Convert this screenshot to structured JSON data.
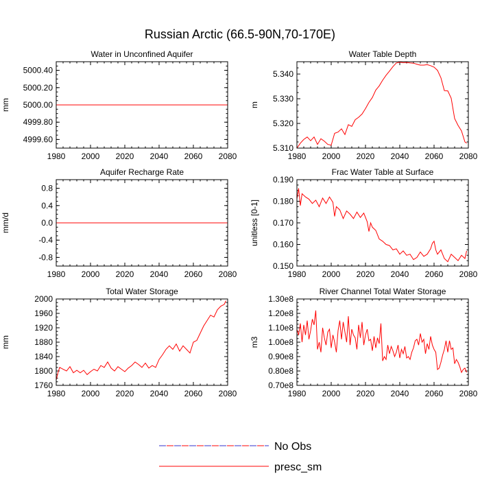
{
  "figure": {
    "title": "Russian Arctic (66.5-90N,70-170E)"
  },
  "legend": {
    "entries": [
      {
        "label": "No Obs",
        "style": "dashed",
        "color": "#3333cc",
        "color2": "#ff0000"
      },
      {
        "label": "presc_sm",
        "style": "solid",
        "color": "#ff0000"
      }
    ]
  },
  "chart_data": [
    {
      "type": "line",
      "title": "Water in Unconfined Aquifer",
      "xlabel": "",
      "ylabel": "mm",
      "xlim": [
        1980,
        2080
      ],
      "ylim": [
        4999.5,
        5000.5
      ],
      "xticks": [
        1980,
        2000,
        2020,
        2040,
        2060,
        2080
      ],
      "xtick_labels": [
        "1980",
        "2000",
        "2020",
        "2040",
        "2060",
        "2080"
      ],
      "yticks": [
        4999.6,
        4999.8,
        5000.0,
        5000.2,
        5000.4
      ],
      "ytick_labels": [
        "4999.60",
        "4999.80",
        "5000.00",
        "5000.20",
        "5000.40"
      ],
      "series": [
        {
          "name": "presc_sm",
          "x": [
            1980,
            2080
          ],
          "values": [
            5000.0,
            5000.0
          ]
        }
      ]
    },
    {
      "type": "line",
      "title": "Water Table Depth",
      "xlabel": "",
      "ylabel": "m",
      "xlim": [
        1980,
        2080
      ],
      "ylim": [
        5.31,
        5.345
      ],
      "xticks": [
        1980,
        2000,
        2020,
        2040,
        2060,
        2080
      ],
      "xtick_labels": [
        "1980",
        "2000",
        "2020",
        "2040",
        "2060",
        "2080"
      ],
      "yticks": [
        5.31,
        5.32,
        5.33,
        5.34
      ],
      "ytick_labels": [
        "5.310",
        "5.320",
        "5.330",
        "5.340"
      ],
      "series": [
        {
          "name": "presc_sm",
          "x": [
            1980,
            1982,
            1984,
            1986,
            1988,
            1990,
            1992,
            1994,
            1996,
            1998,
            2000,
            2002,
            2004,
            2006,
            2008,
            2010,
            2012,
            2014,
            2016,
            2018,
            2020,
            2022,
            2024,
            2026,
            2028,
            2030,
            2032,
            2034,
            2036,
            2038,
            2040,
            2042,
            2044,
            2046,
            2048,
            2050,
            2052,
            2054,
            2056,
            2058,
            2060,
            2062,
            2064,
            2066,
            2068,
            2070,
            2072,
            2074,
            2076,
            2078,
            2079
          ],
          "values": [
            5.31,
            5.312,
            5.3135,
            5.3145,
            5.313,
            5.3145,
            5.3115,
            5.3138,
            5.3128,
            5.3115,
            5.3112,
            5.316,
            5.3165,
            5.3178,
            5.3155,
            5.3195,
            5.3188,
            5.3215,
            5.3225,
            5.3238,
            5.326,
            5.3285,
            5.3305,
            5.3335,
            5.3352,
            5.3375,
            5.3395,
            5.3412,
            5.343,
            5.3445,
            5.3448,
            5.3446,
            5.3447,
            5.3445,
            5.3444,
            5.344,
            5.3436,
            5.3436,
            5.3438,
            5.3434,
            5.3428,
            5.3415,
            5.3385,
            5.3333,
            5.3332,
            5.3302,
            5.322,
            5.3192,
            5.317,
            5.3125,
            5.312
          ]
        }
      ]
    },
    {
      "type": "line",
      "title": "Aquifer Recharge Rate",
      "xlabel": "",
      "ylabel": "mm/d",
      "xlim": [
        1980,
        2080
      ],
      "ylim": [
        -1.0,
        1.0
      ],
      "xticks": [
        1980,
        2000,
        2020,
        2040,
        2060,
        2080
      ],
      "xtick_labels": [
        "1980",
        "2000",
        "2020",
        "2040",
        "2060",
        "2080"
      ],
      "yticks": [
        -0.8,
        -0.4,
        0.0,
        0.4,
        0.8
      ],
      "ytick_labels": [
        "-0.8",
        "-0.4",
        "0.0",
        "0.4",
        "0.8"
      ],
      "series": [
        {
          "name": "presc_sm",
          "x": [
            1980,
            2080
          ],
          "values": [
            0.0,
            0.0
          ]
        }
      ]
    },
    {
      "type": "line",
      "title": "Frac Water Table at Surface",
      "xlabel": "",
      "ylabel": "unitless [0-1]",
      "xlim": [
        1980,
        2080
      ],
      "ylim": [
        0.15,
        0.19
      ],
      "xticks": [
        1980,
        2000,
        2020,
        2040,
        2060,
        2080
      ],
      "xtick_labels": [
        "1980",
        "2000",
        "2020",
        "2040",
        "2060",
        "2080"
      ],
      "yticks": [
        0.15,
        0.16,
        0.17,
        0.18,
        0.19
      ],
      "ytick_labels": [
        "0.150",
        "0.160",
        "0.170",
        "0.180",
        "0.190"
      ],
      "series": [
        {
          "name": "presc_sm",
          "x": [
            1980,
            1981,
            1982,
            1983,
            1985,
            1987,
            1989,
            1991,
            1993,
            1995,
            1997,
            1999,
            2001,
            2002,
            2003,
            2005,
            2007,
            2009,
            2011,
            2013,
            2015,
            2017,
            2019,
            2021,
            2022,
            2023,
            2024,
            2026,
            2028,
            2030,
            2032,
            2034,
            2036,
            2038,
            2040,
            2042,
            2044,
            2046,
            2048,
            2050,
            2052,
            2054,
            2056,
            2058,
            2059,
            2060,
            2061,
            2062,
            2064,
            2066,
            2068,
            2070,
            2072,
            2074,
            2076,
            2078,
            2079
          ],
          "values": [
            0.181,
            0.186,
            0.178,
            0.1835,
            0.182,
            0.181,
            0.179,
            0.1805,
            0.1775,
            0.1815,
            0.179,
            0.182,
            0.1795,
            0.173,
            0.1775,
            0.176,
            0.172,
            0.1755,
            0.174,
            0.172,
            0.175,
            0.1725,
            0.1745,
            0.1705,
            0.166,
            0.17,
            0.168,
            0.1665,
            0.1625,
            0.1615,
            0.16,
            0.1595,
            0.1575,
            0.158,
            0.1555,
            0.157,
            0.155,
            0.1555,
            0.153,
            0.154,
            0.1565,
            0.1545,
            0.1555,
            0.158,
            0.1605,
            0.1615,
            0.1575,
            0.1555,
            0.1575,
            0.1535,
            0.152,
            0.1555,
            0.154,
            0.1525,
            0.155,
            0.1535,
            0.157
          ]
        }
      ]
    },
    {
      "type": "line",
      "title": "Total Water Storage",
      "xlabel": "",
      "ylabel": "mm",
      "xlim": [
        1980,
        2080
      ],
      "ylim": [
        1760,
        2000
      ],
      "xticks": [
        1980,
        2000,
        2020,
        2040,
        2060,
        2080
      ],
      "xtick_labels": [
        "1980",
        "2000",
        "2020",
        "2040",
        "2060",
        "2080"
      ],
      "yticks": [
        1760,
        1800,
        1840,
        1880,
        1920,
        1960,
        2000
      ],
      "ytick_labels": [
        "1760",
        "1800",
        "1840",
        "1880",
        "1920",
        "1960",
        "2000"
      ],
      "series": [
        {
          "name": "presc_sm",
          "x": [
            1980,
            1981,
            1982,
            1984,
            1986,
            1988,
            1990,
            1992,
            1994,
            1996,
            1998,
            2000,
            2002,
            2004,
            2006,
            2008,
            2010,
            2012,
            2014,
            2016,
            2018,
            2020,
            2022,
            2024,
            2026,
            2028,
            2030,
            2032,
            2034,
            2036,
            2038,
            2040,
            2042,
            2044,
            2046,
            2048,
            2050,
            2052,
            2054,
            2056,
            2058,
            2060,
            2062,
            2064,
            2066,
            2068,
            2070,
            2072,
            2074,
            2076,
            2078,
            2079
          ],
          "values": [
            1775,
            1795,
            1810,
            1805,
            1800,
            1812,
            1795,
            1802,
            1795,
            1802,
            1790,
            1798,
            1805,
            1800,
            1815,
            1810,
            1825,
            1808,
            1800,
            1812,
            1805,
            1798,
            1808,
            1815,
            1825,
            1818,
            1810,
            1822,
            1808,
            1815,
            1810,
            1832,
            1845,
            1860,
            1870,
            1860,
            1875,
            1855,
            1870,
            1860,
            1850,
            1880,
            1885,
            1905,
            1925,
            1940,
            1955,
            1950,
            1970,
            1980,
            1985,
            1995
          ]
        }
      ]
    },
    {
      "type": "line",
      "title": "River Channel Total Water Storage",
      "xlabel": "",
      "ylabel": "m3",
      "xlim": [
        1980,
        2080
      ],
      "ylim": [
        70000000.0,
        130000000.0
      ],
      "xticks": [
        1980,
        2000,
        2020,
        2040,
        2060,
        2080
      ],
      "xtick_labels": [
        "1980",
        "2000",
        "2020",
        "2040",
        "2060",
        "2080"
      ],
      "yticks": [
        70000000.0,
        80000000.0,
        90000000.0,
        100000000.0,
        110000000.0,
        120000000.0,
        130000000.0
      ],
      "ytick_labels": [
        "0.70e8",
        "0.80e8",
        "0.90e8",
        "1.00e8",
        "1.10e8",
        "1.20e8",
        "1.30e8"
      ],
      "series": [
        {
          "name": "presc_sm",
          "x": [
            1980,
            1981,
            1982,
            1983,
            1984,
            1985,
            1986,
            1987,
            1988,
            1989,
            1990,
            1991,
            1992,
            1993,
            1994,
            1995,
            1996,
            1997,
            1998,
            1999,
            2000,
            2001,
            2002,
            2003,
            2004,
            2005,
            2006,
            2007,
            2008,
            2009,
            2010,
            2011,
            2012,
            2013,
            2014,
            2015,
            2016,
            2017,
            2018,
            2019,
            2020,
            2021,
            2022,
            2023,
            2024,
            2025,
            2026,
            2027,
            2028,
            2029,
            2030,
            2031,
            2032,
            2033,
            2034,
            2035,
            2036,
            2037,
            2038,
            2039,
            2040,
            2041,
            2042,
            2043,
            2044,
            2045,
            2046,
            2047,
            2048,
            2049,
            2050,
            2051,
            2052,
            2053,
            2054,
            2055,
            2056,
            2057,
            2058,
            2059,
            2060,
            2061,
            2062,
            2063,
            2064,
            2065,
            2066,
            2067,
            2068,
            2069,
            2070,
            2071,
            2072,
            2073,
            2074,
            2075,
            2076,
            2077,
            2078,
            2079
          ],
          "values": [
            109000000.0,
            105000000.0,
            113000000.0,
            100000000.0,
            112000000.0,
            105000000.0,
            115000000.0,
            102000000.0,
            108000000.0,
            116000000.0,
            112000000.0,
            122000000.0,
            95000000.0,
            100000000.0,
            93000000.0,
            110000000.0,
            103000000.0,
            98000000.0,
            107000000.0,
            109000000.0,
            96000000.0,
            105000000.0,
            100000000.0,
            93000000.0,
            108000000.0,
            115000000.0,
            102000000.0,
            114000000.0,
            107000000.0,
            100000000.0,
            118000000.0,
            98000000.0,
            109000000.0,
            105000000.0,
            103000000.0,
            95000000.0,
            112000000.0,
            103000000.0,
            114000000.0,
            98000000.0,
            105000000.0,
            109000000.0,
            101000000.0,
            102000000.0,
            94000000.0,
            104000000.0,
            96000000.0,
            103000000.0,
            99000000.0,
            113000000.0,
            87000000.0,
            90000000.0,
            88000000.0,
            98000000.0,
            92000000.0,
            97000000.0,
            94000000.0,
            90000000.0,
            93000000.0,
            98000000.0,
            89000000.0,
            95000000.0,
            92000000.0,
            97000000.0,
            89000000.0,
            90000000.0,
            88000000.0,
            93000000.0,
            96000000.0,
            101000000.0,
            102000000.0,
            98000000.0,
            106000000.0,
            100000000.0,
            102000000.0,
            92000000.0,
            99000000.0,
            95000000.0,
            104000000.0,
            98000000.0,
            95000000.0,
            93000000.0,
            81000000.0,
            82000000.0,
            86000000.0,
            91000000.0,
            95000000.0,
            101000000.0,
            93000000.0,
            101000000.0,
            95000000.0,
            96000000.0,
            85000000.0,
            88000000.0,
            86000000.0,
            83000000.0,
            79000000.0,
            81000000.0,
            82000000.0,
            79000000.0
          ]
        }
      ]
    }
  ]
}
